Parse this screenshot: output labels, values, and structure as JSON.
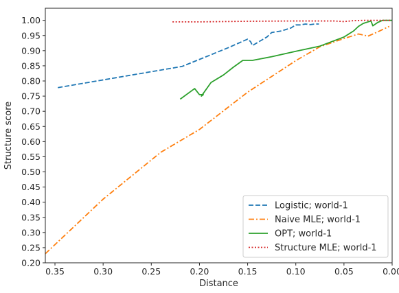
{
  "chart_data": {
    "type": "line",
    "xlabel": "Distance",
    "ylabel": "Structure score",
    "xlim": [
      0.36,
      0.0
    ],
    "ylim": [
      0.2,
      1.04
    ],
    "x_inverted": true,
    "grid": false,
    "legend_position": "lower-right",
    "x_ticks": [
      0.35,
      0.3,
      0.25,
      0.2,
      0.15,
      0.1,
      0.05,
      0.0
    ],
    "x_tick_labels": [
      "0.35",
      "0.30",
      "0.25",
      "0.20",
      "0.15",
      "0.10",
      "0.05",
      "0.00"
    ],
    "y_ticks": [
      0.2,
      0.25,
      0.3,
      0.35,
      0.4,
      0.45,
      0.5,
      0.55,
      0.6,
      0.65,
      0.7,
      0.75,
      0.8,
      0.85,
      0.9,
      0.95,
      1.0
    ],
    "y_tick_labels": [
      "0.20",
      "0.25",
      "0.30",
      "0.35",
      "0.40",
      "0.45",
      "0.50",
      "0.55",
      "0.60",
      "0.65",
      "0.70",
      "0.75",
      "0.80",
      "0.85",
      "0.90",
      "0.95",
      "1.00"
    ],
    "series": [
      {
        "name": "Logistic; world-1",
        "color": "#1f77b4",
        "style": "dashed",
        "points": [
          [
            0.347,
            0.778
          ],
          [
            0.218,
            0.848
          ],
          [
            0.19,
            0.884
          ],
          [
            0.17,
            0.91
          ],
          [
            0.15,
            0.938
          ],
          [
            0.147,
            0.93
          ],
          [
            0.145,
            0.917
          ],
          [
            0.13,
            0.945
          ],
          [
            0.125,
            0.96
          ],
          [
            0.115,
            0.965
          ],
          [
            0.105,
            0.975
          ],
          [
            0.1,
            0.985
          ],
          [
            0.095,
            0.985
          ],
          [
            0.09,
            0.988
          ],
          [
            0.085,
            0.986
          ],
          [
            0.08,
            0.988
          ],
          [
            0.076,
            0.988
          ]
        ]
      },
      {
        "name": "Naive MLE; world-1",
        "color": "#ff7f0e",
        "style": "dashdot",
        "points": [
          [
            0.36,
            0.23
          ],
          [
            0.35,
            0.26
          ],
          [
            0.3,
            0.41
          ],
          [
            0.24,
            0.565
          ],
          [
            0.2,
            0.64
          ],
          [
            0.15,
            0.763
          ],
          [
            0.1,
            0.867
          ],
          [
            0.075,
            0.913
          ],
          [
            0.05,
            0.94
          ],
          [
            0.035,
            0.955
          ],
          [
            0.025,
            0.948
          ],
          [
            0.015,
            0.962
          ],
          [
            0.003,
            0.98
          ]
        ]
      },
      {
        "name": "OPT; world-1",
        "color": "#2ca02c",
        "style": "solid",
        "points": [
          [
            0.22,
            0.74
          ],
          [
            0.205,
            0.775
          ],
          [
            0.2,
            0.755
          ],
          [
            0.196,
            0.755
          ],
          [
            0.198,
            0.75
          ],
          [
            0.188,
            0.795
          ],
          [
            0.175,
            0.82
          ],
          [
            0.165,
            0.845
          ],
          [
            0.155,
            0.868
          ],
          [
            0.145,
            0.868
          ],
          [
            0.125,
            0.88
          ],
          [
            0.1,
            0.898
          ],
          [
            0.075,
            0.915
          ],
          [
            0.05,
            0.945
          ],
          [
            0.04,
            0.965
          ],
          [
            0.035,
            0.98
          ],
          [
            0.03,
            0.99
          ],
          [
            0.022,
            0.998
          ],
          [
            0.02,
            0.982
          ],
          [
            0.015,
            0.993
          ],
          [
            0.01,
            1.0
          ],
          [
            0.0,
            1.0
          ]
        ]
      },
      {
        "name": "Structure MLE; world-1",
        "color": "#d62728",
        "style": "dotted",
        "points": [
          [
            0.228,
            0.995
          ],
          [
            0.2,
            0.995
          ],
          [
            0.15,
            0.997
          ],
          [
            0.1,
            0.998
          ],
          [
            0.06,
            0.998
          ],
          [
            0.05,
            0.996
          ],
          [
            0.04,
            0.999
          ],
          [
            0.03,
            1.0
          ],
          [
            0.02,
            1.0
          ],
          [
            0.01,
            1.0
          ],
          [
            0.0,
            1.0
          ]
        ]
      }
    ]
  }
}
